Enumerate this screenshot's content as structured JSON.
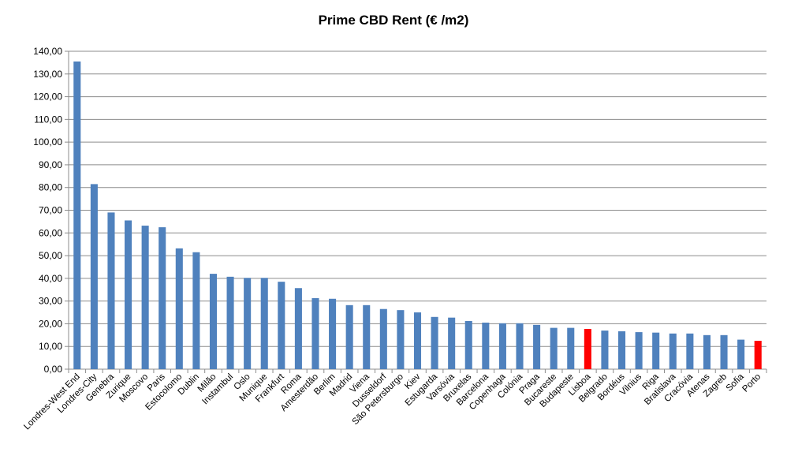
{
  "chart_data": {
    "type": "bar",
    "title": "Prime CBD Rent (€ /m2)",
    "xlabel": "",
    "ylabel": "",
    "ylim": [
      0,
      140
    ],
    "ytick_step": 10,
    "ytick_labels": [
      "0,00",
      "10,00",
      "20,00",
      "30,00",
      "40,00",
      "50,00",
      "60,00",
      "70,00",
      "80,00",
      "90,00",
      "100,00",
      "110,00",
      "120,00",
      "130,00",
      "140,00"
    ],
    "grid": true,
    "legend": "none",
    "bar_color": "#4F81BD",
    "highlight_color": "#FF0000",
    "highlight": [
      "Lisboa",
      "Porto"
    ],
    "categories": [
      "Londres-West End",
      "Londres-City",
      "Genebra",
      "Zurique",
      "Moscovo",
      "Paris",
      "Estocolomo",
      "Dublin",
      "Milão",
      "Instambul",
      "Oslo",
      "Munique",
      "Frankfurt",
      "Roma",
      "Amesterdão",
      "Berlim",
      "Madrid",
      "Viena",
      "Dusseldorf",
      "São Petersburgo",
      "Kiev",
      "Estugarda",
      "Varsóvia",
      "Bruxelas",
      "Barcelona",
      "Copenhaga",
      "Colónia",
      "Praga",
      "Bucareste",
      "Budapeste",
      "Lisboa",
      "Belgrado",
      "Bordéus",
      "Vilnius",
      "Riga",
      "Bratislava",
      "Cracóvia",
      "Atenas",
      "Zagreb",
      "Sofia",
      "Porto"
    ],
    "values": [
      135.5,
      81.5,
      69,
      65.5,
      63.2,
      62.5,
      53.2,
      51.5,
      42,
      40.7,
      40.2,
      40.2,
      38.5,
      35.7,
      31.3,
      31,
      28.2,
      28.2,
      26.5,
      26,
      25,
      23,
      22.7,
      21.2,
      20.5,
      20.2,
      20.2,
      19.5,
      18.2,
      18.2,
      17.7,
      17,
      16.7,
      16.3,
      16.1,
      15.7,
      15.7,
      15,
      15,
      13,
      12.5
    ]
  }
}
